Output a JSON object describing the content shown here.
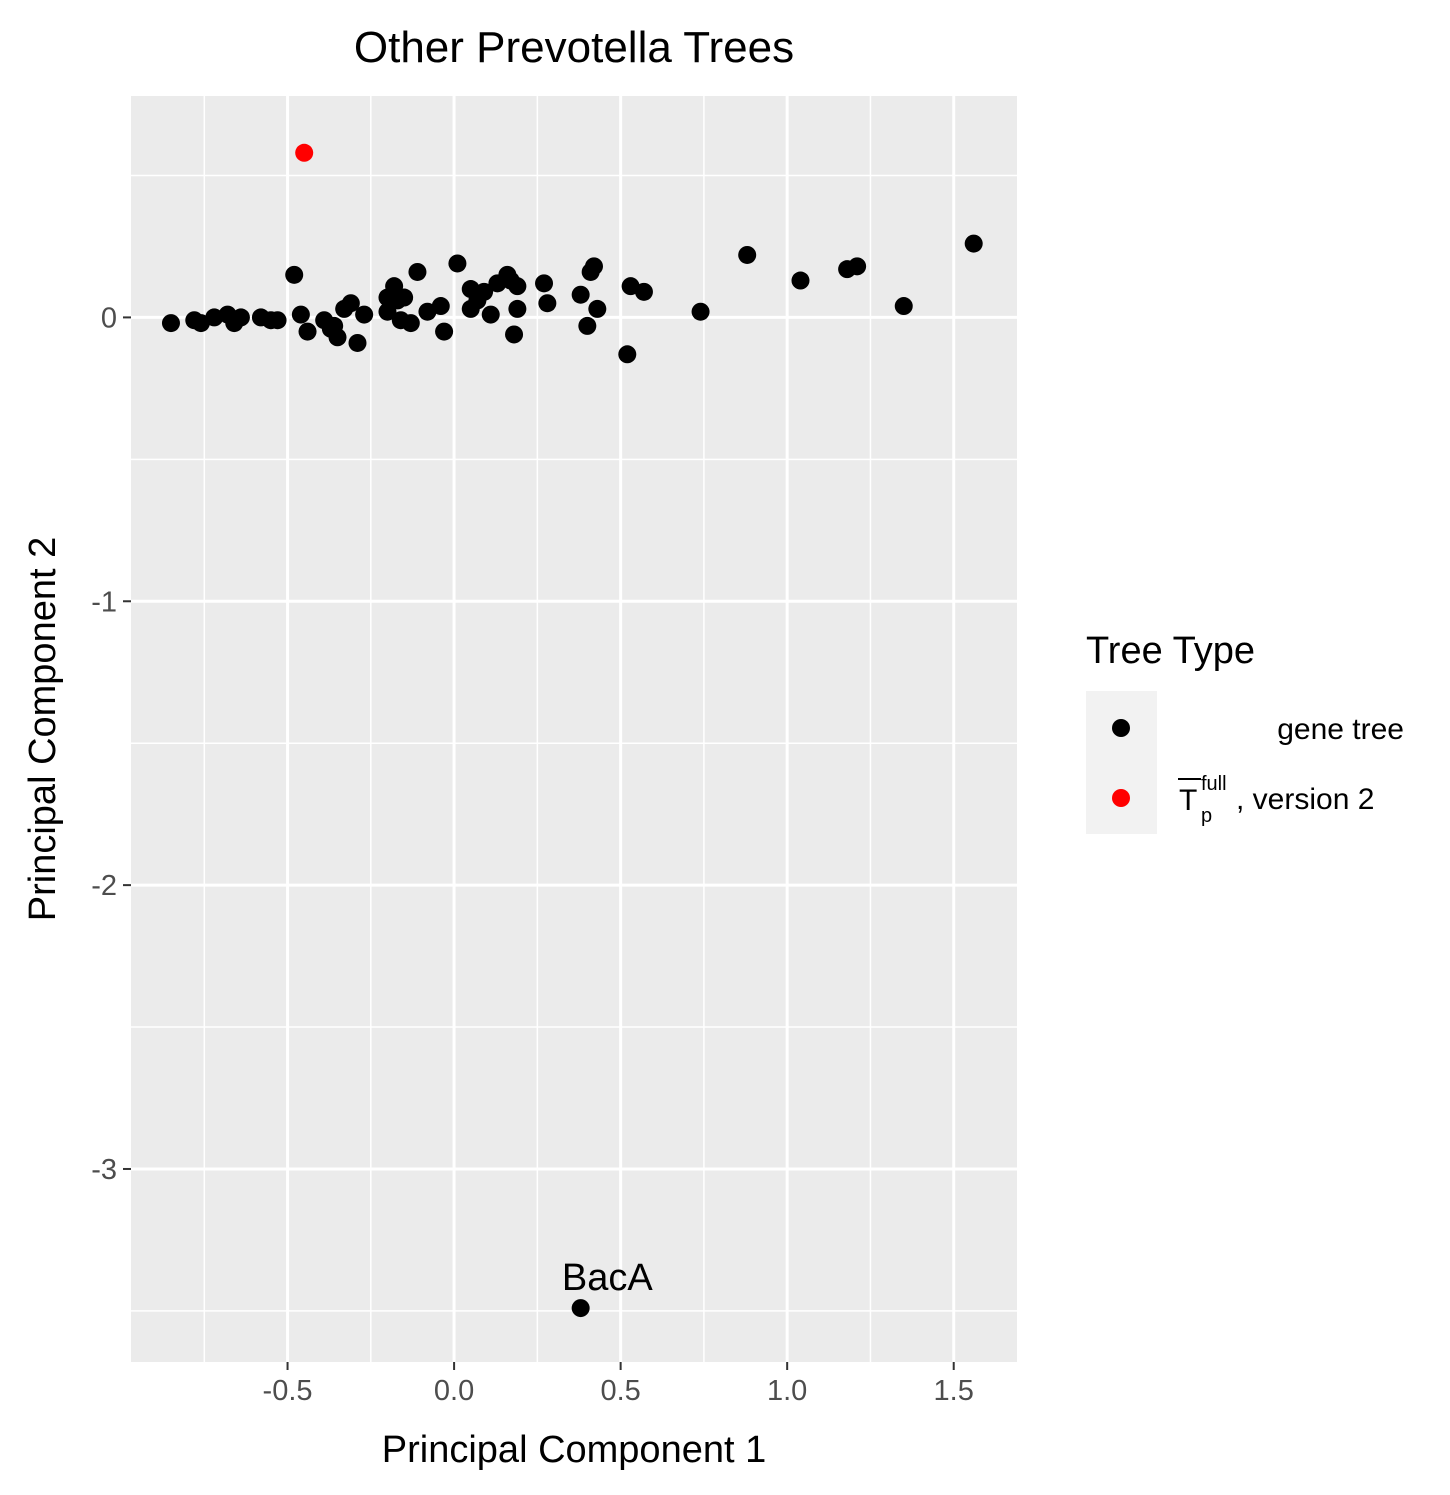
{
  "chart_data": {
    "type": "scatter",
    "title": "Other Prevotella Trees",
    "xlabel": "Principal Component 1",
    "ylabel": "Principal Component 2",
    "xlim": [
      -0.97,
      1.69
    ],
    "ylim": [
      -3.68,
      0.78
    ],
    "x_ticks": [
      -0.5,
      0.0,
      0.5,
      1.0,
      1.5
    ],
    "x_tick_labels": [
      "-0.5",
      "0.0",
      "0.5",
      "1.0",
      "1.5"
    ],
    "y_ticks": [
      0,
      -1,
      -2,
      -3
    ],
    "y_tick_labels": [
      "0",
      "-1",
      "-2",
      "-3"
    ],
    "grid": true,
    "legend": {
      "title": "Tree Type",
      "position": "right",
      "entries": [
        {
          "label": "gene tree",
          "color": "#000000"
        },
        {
          "label_main": "T",
          "label_sup": "full",
          "label_sub": "p",
          "label_rest": ", version 2",
          "color": "#ff0000"
        }
      ]
    },
    "annotations": [
      {
        "text": "BacA",
        "x": 0.46,
        "y": -3.38
      }
    ],
    "series": [
      {
        "color": "#000000",
        "points": [
          [
            -0.85,
            -0.02
          ],
          [
            -0.78,
            -0.01
          ],
          [
            -0.76,
            -0.02
          ],
          [
            -0.72,
            0.0
          ],
          [
            -0.68,
            0.01
          ],
          [
            -0.66,
            -0.02
          ],
          [
            -0.64,
            0.0
          ],
          [
            -0.58,
            0.0
          ],
          [
            -0.55,
            -0.01
          ],
          [
            -0.53,
            -0.01
          ],
          [
            -0.48,
            0.15
          ],
          [
            -0.46,
            0.01
          ],
          [
            -0.44,
            -0.05
          ],
          [
            -0.39,
            -0.01
          ],
          [
            -0.37,
            -0.04
          ],
          [
            -0.36,
            -0.03
          ],
          [
            -0.35,
            -0.07
          ],
          [
            -0.33,
            0.03
          ],
          [
            -0.31,
            0.05
          ],
          [
            -0.29,
            -0.09
          ],
          [
            -0.27,
            0.01
          ],
          [
            -0.2,
            0.07
          ],
          [
            -0.2,
            0.02
          ],
          [
            -0.18,
            0.11
          ],
          [
            -0.17,
            0.06
          ],
          [
            -0.16,
            -0.01
          ],
          [
            -0.15,
            0.07
          ],
          [
            -0.13,
            -0.02
          ],
          [
            -0.11,
            0.16
          ],
          [
            -0.08,
            0.02
          ],
          [
            -0.04,
            0.04
          ],
          [
            -0.03,
            -0.05
          ],
          [
            0.01,
            0.19
          ],
          [
            0.05,
            0.03
          ],
          [
            0.05,
            0.1
          ],
          [
            0.07,
            0.06
          ],
          [
            0.09,
            0.09
          ],
          [
            0.11,
            0.01
          ],
          [
            0.13,
            0.12
          ],
          [
            0.16,
            0.15
          ],
          [
            0.17,
            0.13
          ],
          [
            0.18,
            -0.06
          ],
          [
            0.19,
            0.03
          ],
          [
            0.19,
            0.11
          ],
          [
            0.27,
            0.12
          ],
          [
            0.28,
            0.05
          ],
          [
            0.38,
            0.08
          ],
          [
            0.4,
            -0.03
          ],
          [
            0.41,
            0.16
          ],
          [
            0.42,
            0.18
          ],
          [
            0.43,
            0.03
          ],
          [
            0.52,
            -0.13
          ],
          [
            0.53,
            0.11
          ],
          [
            0.57,
            0.09
          ],
          [
            0.74,
            0.02
          ],
          [
            0.88,
            0.22
          ],
          [
            1.04,
            0.13
          ],
          [
            1.18,
            0.17
          ],
          [
            1.21,
            0.18
          ],
          [
            1.35,
            0.04
          ],
          [
            1.56,
            0.26
          ],
          [
            0.38,
            -3.49
          ]
        ]
      },
      {
        "color": "#ff0000",
        "points": [
          [
            -0.45,
            0.58
          ]
        ]
      }
    ]
  }
}
